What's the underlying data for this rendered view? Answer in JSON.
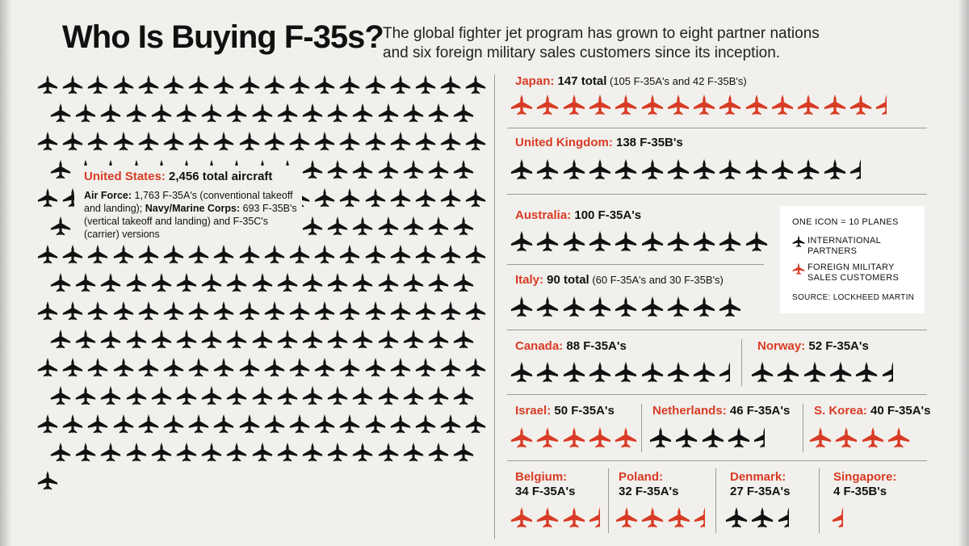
{
  "title": "Who Is Buying F-35s?",
  "subtitle_line1": "The global fighter jet program has grown to eight partner nations",
  "subtitle_line2": "and six foreign military sales customers since its inception.",
  "colors": {
    "partner": "#111111",
    "fms": "#d83b25",
    "background": "#f2f0ec"
  },
  "icon_unit": 10,
  "united_states": {
    "country": "United States:",
    "total": "2,456 total aircraft",
    "desc_b1": "Air Force:",
    "desc_t1": " 1,763 F-35A's (conventional takeoff and landing); ",
    "desc_b2": "Navy/Marine Corps:",
    "desc_t2": " 693 F-35B's (vertical takeoff and landing) and F-35C's (carrier) versions",
    "planes": 2456,
    "type": "partner"
  },
  "countries": [
    {
      "country": "Japan:",
      "main": " 147 total",
      "extra": " (105 F-35A's and 42 F-35B's)",
      "planes": 147,
      "type": "fms"
    },
    {
      "country": "United Kingdom:",
      "main": " 138 F-35B's",
      "extra": "",
      "planes": 138,
      "type": "partner"
    },
    {
      "country": "Australia:",
      "main": " 100 F-35A's",
      "extra": "",
      "planes": 100,
      "type": "partner"
    },
    {
      "country": "Italy:",
      "main": " 90 total",
      "extra": " (60 F-35A's and 30 F-35B's)",
      "planes": 90,
      "type": "partner"
    },
    {
      "country": "Canada:",
      "main": " 88 F-35A's",
      "extra": "",
      "planes": 88,
      "type": "partner"
    },
    {
      "country": "Norway:",
      "main": " 52 F-35A's",
      "extra": "",
      "planes": 52,
      "type": "partner"
    },
    {
      "country": "Israel:",
      "main": " 50 F-35A's",
      "extra": "",
      "planes": 50,
      "type": "fms"
    },
    {
      "country": "Netherlands:",
      "main": " 46 F-35A's",
      "extra": "",
      "planes": 46,
      "type": "partner"
    },
    {
      "country": "S. Korea:",
      "main": " 40 F-35A's",
      "extra": "",
      "planes": 40,
      "type": "fms"
    },
    {
      "country": "Belgium:",
      "main": "34 F-35A's",
      "extra": "",
      "planes": 34,
      "type": "fms"
    },
    {
      "country": "Poland:",
      "main": "32 F-35A's",
      "extra": "",
      "planes": 32,
      "type": "fms"
    },
    {
      "country": "Denmark:",
      "main": "27 F-35A's",
      "extra": "",
      "planes": 27,
      "type": "partner"
    },
    {
      "country": "Singapore:",
      "main": "4 F-35B's",
      "extra": "",
      "planes": 4,
      "type": "fms"
    }
  ],
  "legend": {
    "unit_label": "ONE ICON = 10 PLANES",
    "partner_line1": "INTERNATIONAL",
    "partner_line2": "PARTNERS",
    "fms_line1": "FOREIGN MILITARY",
    "fms_line2": "SALES CUSTOMERS",
    "source": "SOURCE: LOCKHEED MARTIN",
    "partner_icon": "black-jet-icon",
    "fms_icon": "red-jet-icon"
  }
}
